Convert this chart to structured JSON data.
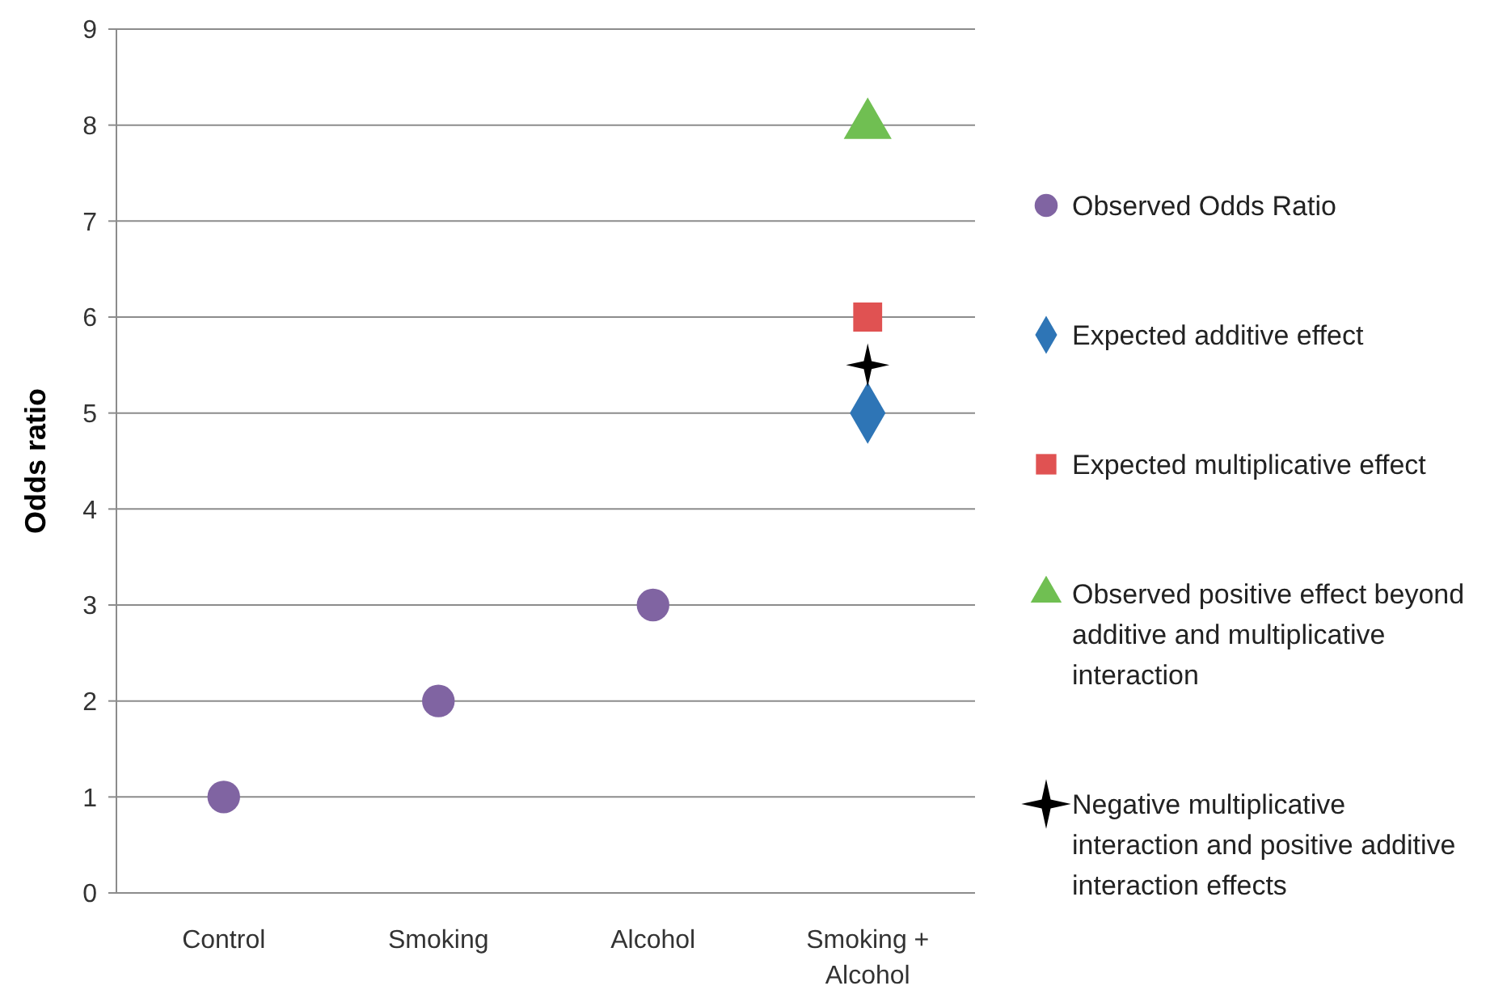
{
  "chart_data": {
    "type": "scatter",
    "ylabel": "Odds ratio",
    "categories": [
      "Control",
      "Smoking",
      "Alcohol",
      "Smoking + Alcohol"
    ],
    "ylim": [
      0,
      9
    ],
    "yticks": [
      0,
      1,
      2,
      3,
      4,
      5,
      6,
      7,
      8,
      9
    ],
    "grid": "y",
    "legend": "right",
    "series": [
      {
        "name": "Observed Odds Ratio",
        "color": "#8064a2",
        "marker": "circle",
        "values": [
          1,
          2,
          3,
          null
        ]
      },
      {
        "name": "Expected additive effect",
        "color": "#2e75b6",
        "marker": "diamond",
        "values": [
          null,
          null,
          null,
          5
        ]
      },
      {
        "name": "Expected multiplicative effect",
        "color": "#e05252",
        "marker": "square",
        "values": [
          null,
          null,
          null,
          6
        ]
      },
      {
        "name": "Observed positive effect beyond additive and multiplicative interaction",
        "color": "#70bf52",
        "marker": "triangle",
        "values": [
          null,
          null,
          null,
          8
        ]
      },
      {
        "name": "Negative multiplicative interaction and positive additive interaction effects",
        "color": "#000000",
        "marker": "star",
        "values": [
          null,
          null,
          null,
          5.5
        ]
      }
    ]
  }
}
